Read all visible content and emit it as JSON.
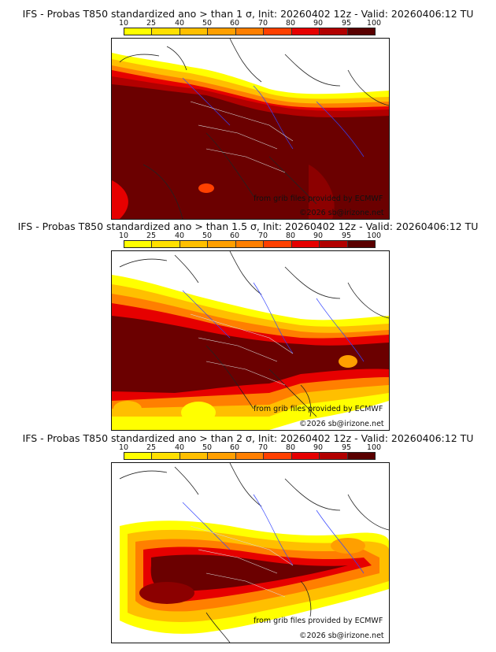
{
  "colorbar": {
    "labels": [
      "10",
      "25",
      "40",
      "50",
      "60",
      "70",
      "80",
      "90",
      "95",
      "100"
    ],
    "colors": [
      "#ffff00",
      "#ffe000",
      "#ffbf00",
      "#ff9f00",
      "#ff7f00",
      "#ff4000",
      "#e60000",
      "#b20000",
      "#8c0000",
      "#5a0000"
    ]
  },
  "panels": [
    {
      "title": "IFS - Probas T850  standardized ano > than 1 σ, Init: 20260402 12z - Valid: 20260406:12 TU",
      "credit_grib": "from grib files provided by ECMWF",
      "credit_site": "©2026 sb@irizone.net"
    },
    {
      "title": "IFS - Probas T850  standardized ano > than 1.5 σ, Init: 20260402 12z - Valid: 20260406:12 TU",
      "credit_grib": "from grib files provided by ECMWF",
      "credit_site": "©2026 sb@irizone.net"
    },
    {
      "title": "IFS - Probas T850  standardized ano > than 2 σ, Init: 20260402 12z - Valid: 20260406:12 TU",
      "credit_grib": "from grib files provided by ECMWF",
      "credit_site": "©2026 sb@irizone.net"
    }
  ]
}
